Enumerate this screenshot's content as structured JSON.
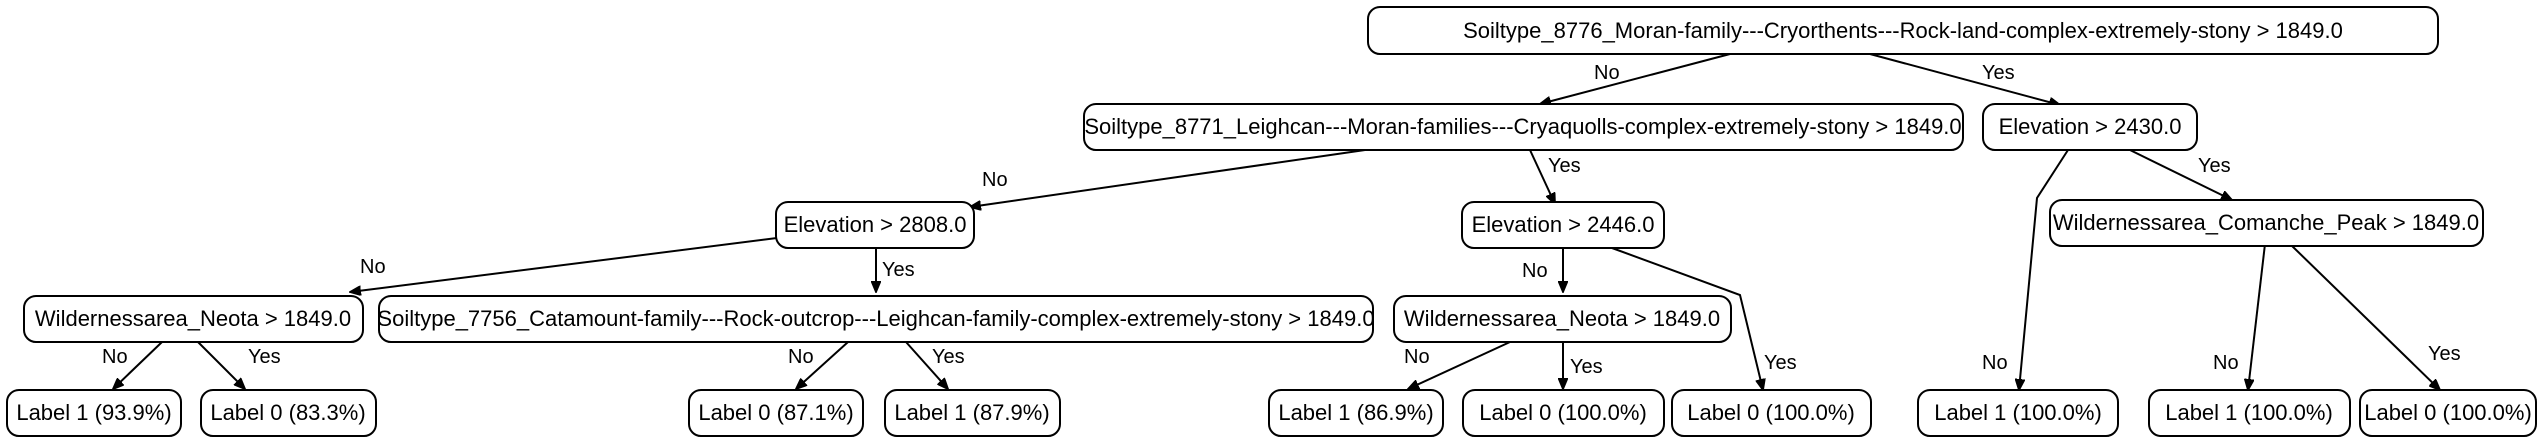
{
  "tree": {
    "nodes": {
      "root": "Soiltype_8776_Moran-family---Cryorthents---Rock-land-complex-extremely-stony > 1849.0",
      "n8771": "Soiltype_8771_Leighcan---Moran-families---Cryaquolls-complex-extremely-stony > 1849.0",
      "elev2430": "Elevation > 2430.0",
      "elev2808": "Elevation > 2808.0",
      "elev2446": "Elevation > 2446.0",
      "comanche": "Wildernessarea_Comanche_Peak > 1849.0",
      "neota1": "Wildernessarea_Neota > 1849.0",
      "n7756": "Soiltype_7756_Catamount-family---Rock-outcrop---Leighcan-family-complex-extremely-stony > 1849.0",
      "neota2": "Wildernessarea_Neota > 1849.0",
      "leaf_a": "Label 1 (93.9%)",
      "leaf_b": "Label 0 (83.3%)",
      "leaf_c": "Label 0 (87.1%)",
      "leaf_d": "Label 1 (87.9%)",
      "leaf_e": "Label 1 (86.9%)",
      "leaf_f": "Label 0 (100.0%)",
      "leaf_g": "Label 0 (100.0%)",
      "leaf_h": "Label 1 (100.0%)",
      "leaf_i": "Label 1 (100.0%)",
      "leaf_j": "Label 0 (100.0%)"
    },
    "edges": {
      "root_no": "No",
      "root_yes": "Yes",
      "n8771_no": "No",
      "n8771_yes": "Yes",
      "elev2430_no": "No",
      "elev2430_yes": "Yes",
      "elev2808_no": "No",
      "elev2808_yes": "Yes",
      "elev2446_no": "No",
      "elev2446_yes": "Yes",
      "comanche_no": "No",
      "comanche_yes": "Yes",
      "neota1_no": "No",
      "neota1_yes": "Yes",
      "n7756_no": "No",
      "n7756_yes": "Yes",
      "neota2_no": "No",
      "neota2_yes": "Yes"
    }
  }
}
